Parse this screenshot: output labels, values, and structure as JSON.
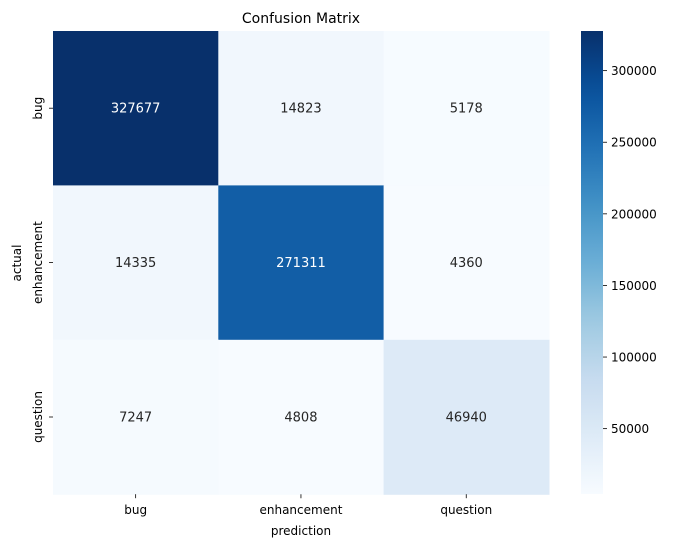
{
  "chart_data": {
    "type": "heatmap",
    "title": "Confusion Matrix",
    "xlabel": "prediction",
    "ylabel": "actual",
    "x_categories": [
      "bug",
      "enhancement",
      "question"
    ],
    "y_categories": [
      "bug",
      "enhancement",
      "question"
    ],
    "values": [
      [
        327677,
        14823,
        5178
      ],
      [
        14335,
        271311,
        4360
      ],
      [
        7247,
        4808,
        46940
      ]
    ],
    "colormap": "Blues",
    "colorbar": {
      "range": [
        4360,
        327677
      ],
      "ticks": [
        50000,
        100000,
        150000,
        200000,
        250000,
        300000
      ]
    },
    "colors": {
      "low": "#f7fbff",
      "high": "#08306b",
      "annot_light": "#ffffff",
      "annot_dark": "#262626"
    }
  }
}
